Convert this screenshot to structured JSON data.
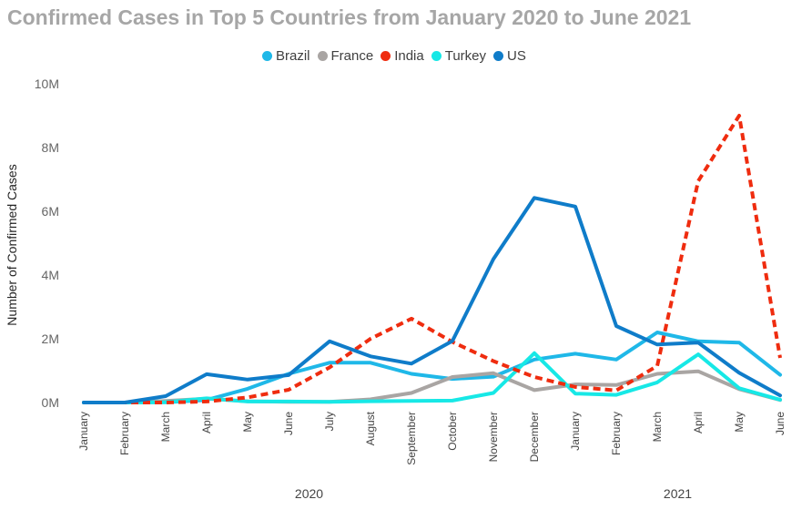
{
  "chart_data": {
    "type": "line",
    "title": "Confirmed Cases in Top 5 Countries from January 2020 to June 2021",
    "xlabel": "",
    "ylabel": "Number of Confirmed Cases",
    "ylim": [
      0,
      10000000
    ],
    "yticks": [
      {
        "value": 0,
        "label": "0M"
      },
      {
        "value": 2000000,
        "label": "2M"
      },
      {
        "value": 4000000,
        "label": "4M"
      },
      {
        "value": 6000000,
        "label": "6M"
      },
      {
        "value": 8000000,
        "label": "8M"
      },
      {
        "value": 10000000,
        "label": "10M"
      }
    ],
    "grid": false,
    "legend_position": "top",
    "categories": [
      "January",
      "February",
      "March",
      "April",
      "May",
      "June",
      "July",
      "August",
      "September",
      "October",
      "November",
      "December",
      "January",
      "February",
      "March",
      "April",
      "May",
      "June"
    ],
    "years": [
      {
        "label": "2020",
        "start": 0,
        "end": 11
      },
      {
        "label": "2021",
        "start": 12,
        "end": 17
      }
    ],
    "series": [
      {
        "name": "Brazil",
        "color": "#1fb8e8",
        "dashed": false,
        "values": [
          0,
          0,
          5000,
          80000,
          430000,
          900000,
          1250000,
          1250000,
          900000,
          740000,
          810000,
          1350000,
          1530000,
          1350000,
          2200000,
          1920000,
          1880000,
          870000
        ]
      },
      {
        "name": "France",
        "color": "#a9a5a3",
        "dashed": false,
        "values": [
          0,
          0,
          50000,
          120000,
          40000,
          20000,
          20000,
          100000,
          300000,
          800000,
          920000,
          390000,
          570000,
          550000,
          900000,
          980000,
          420000,
          80000
        ]
      },
      {
        "name": "Turkey",
        "color": "#17e8e6",
        "dashed": false,
        "values": [
          0,
          0,
          10000,
          130000,
          30000,
          30000,
          20000,
          40000,
          50000,
          60000,
          300000,
          1550000,
          280000,
          240000,
          630000,
          1510000,
          450000,
          90000
        ]
      },
      {
        "name": "India",
        "color": "#ef2c0f",
        "dashed": true,
        "values": [
          0,
          0,
          1000,
          30000,
          160000,
          400000,
          1100000,
          2000000,
          2630000,
          1900000,
          1300000,
          800000,
          490000,
          380000,
          1150000,
          6950000,
          9000000,
          1400000
        ]
      },
      {
        "name": "US",
        "color": "#0f7cc9",
        "dashed": false,
        "values": [
          0,
          0,
          200000,
          890000,
          720000,
          860000,
          1920000,
          1450000,
          1220000,
          1930000,
          4500000,
          6420000,
          6150000,
          2400000,
          1820000,
          1880000,
          930000,
          220000
        ]
      }
    ],
    "legend_order": [
      "Brazil",
      "France",
      "India",
      "Turkey",
      "US"
    ]
  }
}
